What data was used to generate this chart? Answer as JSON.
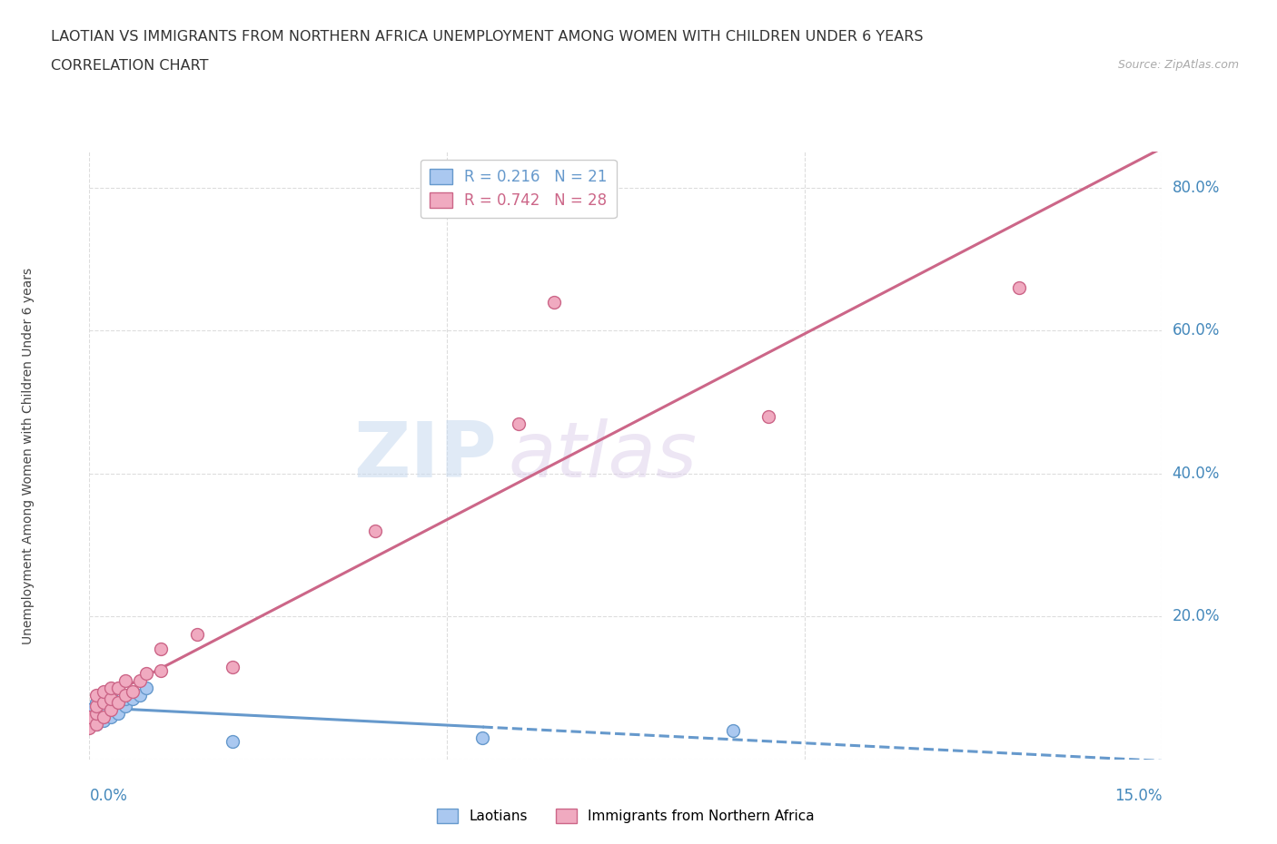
{
  "title_line1": "LAOTIAN VS IMMIGRANTS FROM NORTHERN AFRICA UNEMPLOYMENT AMONG WOMEN WITH CHILDREN UNDER 6 YEARS",
  "title_line2": "CORRELATION CHART",
  "source_text": "Source: ZipAtlas.com",
  "xmin": 0.0,
  "xmax": 0.15,
  "ymin": 0.0,
  "ymax": 0.85,
  "laotian_color": "#aac8f0",
  "laotian_edge_color": "#6699cc",
  "africa_color": "#f0aac0",
  "africa_edge_color": "#cc6688",
  "laotian_r": "0.216",
  "laotian_n": "21",
  "africa_r": "0.742",
  "africa_n": "28",
  "trend_laotian_color": "#6699cc",
  "trend_africa_color": "#cc6688",
  "watermark_zip": "ZIP",
  "watermark_atlas": "atlas",
  "grid_color": "#dddddd",
  "tick_color": "#4488bb",
  "title_fontsize": 11.5,
  "axis_label_fontsize": 10,
  "laotian_x": [
    0.0,
    0.0,
    0.001,
    0.001,
    0.001,
    0.002,
    0.002,
    0.002,
    0.003,
    0.003,
    0.003,
    0.004,
    0.004,
    0.005,
    0.005,
    0.006,
    0.007,
    0.008,
    0.02,
    0.055,
    0.09
  ],
  "laotian_y": [
    0.06,
    0.07,
    0.05,
    0.065,
    0.08,
    0.055,
    0.065,
    0.08,
    0.06,
    0.075,
    0.09,
    0.065,
    0.08,
    0.075,
    0.085,
    0.085,
    0.09,
    0.1,
    0.025,
    0.03,
    0.04
  ],
  "africa_x": [
    0.0,
    0.0,
    0.001,
    0.001,
    0.001,
    0.001,
    0.002,
    0.002,
    0.002,
    0.003,
    0.003,
    0.003,
    0.004,
    0.004,
    0.005,
    0.005,
    0.006,
    0.007,
    0.008,
    0.01,
    0.01,
    0.015,
    0.02,
    0.04,
    0.06,
    0.065,
    0.095,
    0.13
  ],
  "africa_y": [
    0.045,
    0.06,
    0.05,
    0.065,
    0.075,
    0.09,
    0.06,
    0.08,
    0.095,
    0.07,
    0.085,
    0.1,
    0.08,
    0.1,
    0.09,
    0.11,
    0.095,
    0.11,
    0.12,
    0.125,
    0.155,
    0.175,
    0.13,
    0.32,
    0.47,
    0.64,
    0.48,
    0.66
  ]
}
